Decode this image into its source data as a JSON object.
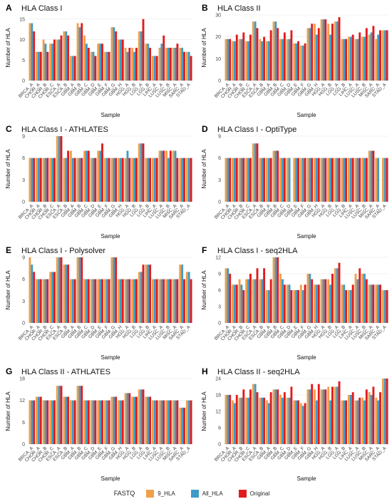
{
  "colors": {
    "9_HLA": "#F0A04B",
    "All_HLA": "#3E9BC8",
    "Original": "#E31A1C"
  },
  "legend": {
    "title": "FASTQ",
    "items": [
      "9_HLA",
      "All_HLA",
      "Original"
    ]
  },
  "chart_data": [
    {
      "panel_label": "A",
      "title": "HLA Class I",
      "type": "bar",
      "xlabel": "Sample",
      "ylabel": "Number of HLA",
      "ylim": [
        0,
        16
      ],
      "yticks": [
        0,
        5,
        10,
        15
      ],
      "grid": true,
      "categories": [
        "BRCA_A",
        "CHOR_A",
        "CHOR_B",
        "CHOR_C",
        "ESCA_A",
        "ESCA_B",
        "GBM_A",
        "GBM_B",
        "GBM_C",
        "GBM_D",
        "GBM_E",
        "GBM_F",
        "GBM_G",
        "GBM_H",
        "HGG_A",
        "HGG_B",
        "LGG_A",
        "LGG_B",
        "LIHC_A",
        "LUSC_A",
        "LUSC_B",
        "MISC_A",
        "SARC_A",
        "STAD_A"
      ],
      "series": [
        {
          "name": "9_HLA",
          "values": [
            14,
            7,
            10,
            9,
            10,
            12,
            6,
            14,
            11,
            7,
            9,
            7,
            13,
            10,
            8,
            8,
            12,
            9,
            6,
            8,
            8,
            8,
            8,
            7
          ]
        },
        {
          "name": "All_HLA",
          "values": [
            14,
            7,
            9,
            9,
            10,
            12,
            6,
            13,
            9,
            7,
            9,
            7,
            13,
            10,
            7,
            7,
            12,
            9,
            6,
            9,
            8,
            8,
            8,
            7
          ]
        },
        {
          "name": "Original",
          "values": [
            12,
            7,
            7,
            10,
            11,
            11,
            6,
            14,
            8,
            6,
            9,
            7,
            12,
            10,
            8,
            8,
            15,
            8,
            6,
            11,
            8,
            9,
            7,
            6
          ]
        }
      ]
    },
    {
      "panel_label": "B",
      "title": "HLA Class II",
      "type": "bar",
      "xlabel": "Sample",
      "ylabel": "Number of HLA",
      "ylim": [
        0,
        30
      ],
      "yticks": [
        0,
        10,
        20,
        30
      ],
      "grid": true,
      "categories": [
        "BRCA_A",
        "CHOR_A",
        "CHOR_B",
        "CHOR_C",
        "ESCA_A",
        "ESCA_B",
        "GBM_A",
        "GBM_B",
        "GBM_C",
        "GBM_D",
        "GBM_E",
        "GBM_F",
        "GBM_G",
        "GBM_H",
        "HGG_A",
        "HGG_B",
        "LGG_A",
        "LGG_B",
        "LIHC_A",
        "LUSC_A",
        "LUSC_B",
        "MISC_A",
        "SARC_A",
        "STAD_A"
      ],
      "series": [
        {
          "name": "9_HLA",
          "values": [
            19,
            18,
            19,
            18,
            27,
            19,
            18,
            27,
            19,
            19,
            17,
            16,
            24,
            26,
            28,
            26,
            27,
            19,
            20,
            19,
            20,
            21,
            19,
            23
          ]
        },
        {
          "name": "All_HLA",
          "values": [
            19,
            18,
            19,
            18,
            27,
            18,
            18,
            27,
            19,
            19,
            17,
            16,
            24,
            21,
            28,
            21,
            27,
            19,
            20,
            19,
            20,
            22,
            21,
            23
          ]
        },
        {
          "name": "Original",
          "values": [
            19,
            21,
            22,
            21,
            24,
            20,
            23,
            24,
            22,
            23,
            18,
            17,
            26,
            24,
            28,
            26,
            29,
            19,
            21,
            22,
            24,
            25,
            23,
            23
          ]
        }
      ]
    },
    {
      "panel_label": "C",
      "title": "HLA Class I - ATHLATES",
      "type": "bar",
      "xlabel": "Sample",
      "ylabel": "Number of HLA",
      "ylim": [
        0,
        9
      ],
      "yticks": [
        0,
        3,
        6,
        9
      ],
      "grid": true,
      "categories": [
        "BRCA_A",
        "CHOR_A",
        "CHOR_B",
        "CHOR_C",
        "ESCA_A",
        "ESCA_B",
        "GBM_A",
        "GBM_B",
        "GBM_C",
        "GBM_D",
        "GBM_E",
        "GBM_F",
        "GBM_G",
        "GBM_H",
        "HGG_A",
        "HGG_B",
        "LGG_A",
        "LGG_B",
        "LIHC_A",
        "LUSC_A",
        "LUSC_B",
        "MISC_A",
        "SARC_A",
        "STAD_A"
      ],
      "series": [
        {
          "name": "9_HLA",
          "values": [
            6,
            6,
            6,
            6,
            9,
            6,
            7,
            6,
            7,
            6,
            7,
            6,
            6,
            6,
            6,
            6,
            8,
            6,
            6,
            7,
            7,
            7,
            6,
            6
          ]
        },
        {
          "name": "All_HLA",
          "values": [
            6,
            6,
            6,
            6,
            9,
            6,
            6,
            6,
            7,
            6,
            7,
            6,
            6,
            6,
            7,
            6,
            8,
            6,
            6,
            7,
            6,
            7,
            6,
            6
          ]
        },
        {
          "name": "Original",
          "values": [
            6,
            6,
            6,
            6,
            9,
            7,
            6,
            6,
            7,
            6,
            8,
            6,
            6,
            6,
            6,
            6,
            8,
            6,
            6,
            7,
            7,
            6,
            6,
            6
          ]
        }
      ]
    },
    {
      "panel_label": "D",
      "title": "HLA Class I - OptiType",
      "type": "bar",
      "xlabel": "Sample",
      "ylabel": "Number of HLA",
      "ylim": [
        0,
        9
      ],
      "yticks": [
        0,
        3,
        6,
        9
      ],
      "grid": true,
      "categories": [
        "BRCA_A",
        "CHOR_A",
        "CHOR_B",
        "CHOR_C",
        "ESCA_A",
        "ESCA_B",
        "GBM_A",
        "GBM_B",
        "GBM_C",
        "GBM_D",
        "GBM_E",
        "GBM_F",
        "GBM_G",
        "GBM_H",
        "HGG_A",
        "HGG_B",
        "LGG_A",
        "LGG_B",
        "LIHC_A",
        "LUSC_A",
        "LUSC_B",
        "MISC_A",
        "SARC_A",
        "STAD_A"
      ],
      "series": [
        {
          "name": "9_HLA",
          "values": [
            6,
            6,
            6,
            6,
            8,
            6,
            6,
            7,
            6,
            6,
            6,
            6,
            6,
            6,
            6,
            6,
            6,
            6,
            6,
            6,
            6,
            7,
            6,
            6
          ]
        },
        {
          "name": "All_HLA",
          "values": [
            6,
            6,
            6,
            6,
            8,
            6,
            6,
            7,
            6,
            6,
            6,
            6,
            6,
            6,
            6,
            6,
            6,
            6,
            6,
            6,
            6,
            7,
            6,
            6
          ]
        },
        {
          "name": "Original",
          "values": [
            6,
            6,
            6,
            6,
            8,
            6,
            6,
            7,
            6,
            0,
            6,
            6,
            6,
            6,
            6,
            6,
            6,
            6,
            6,
            6,
            6,
            7,
            0,
            6
          ]
        }
      ]
    },
    {
      "panel_label": "E",
      "title": "HLA Class I - Polysolver",
      "type": "bar",
      "xlabel": "Sample",
      "ylabel": "Number of HLA",
      "ylim": [
        0,
        9
      ],
      "yticks": [
        0,
        3,
        6,
        9
      ],
      "grid": true,
      "categories": [
        "BRCA_A",
        "CHOR_A",
        "CHOR_B",
        "CHOR_C",
        "ESCA_A",
        "ESCA_B",
        "GBM_A",
        "GBM_B",
        "GBM_C",
        "GBM_D",
        "GBM_E",
        "GBM_F",
        "GBM_G",
        "GBM_H",
        "HGG_A",
        "HGG_B",
        "LGG_A",
        "LGG_B",
        "LIHC_A",
        "LUSC_A",
        "LUSC_B",
        "MISC_A",
        "SARC_A",
        "STAD_A"
      ],
      "series": [
        {
          "name": "9_HLA",
          "values": [
            9,
            6,
            6,
            7,
            9,
            8,
            6,
            9,
            6,
            6,
            6,
            6,
            9,
            6,
            6,
            6,
            7,
            8,
            6,
            6,
            6,
            6,
            8,
            7
          ]
        },
        {
          "name": "All_HLA",
          "values": [
            8,
            6,
            6,
            7,
            9,
            8,
            6,
            9,
            6,
            6,
            6,
            6,
            9,
            6,
            6,
            6,
            7,
            8,
            6,
            6,
            6,
            6,
            8,
            7
          ]
        },
        {
          "name": "Original",
          "values": [
            7,
            6,
            6,
            7,
            9,
            8,
            6,
            9,
            6,
            6,
            6,
            6,
            9,
            6,
            6,
            6,
            8,
            8,
            6,
            6,
            6,
            6,
            6,
            6
          ]
        }
      ]
    },
    {
      "panel_label": "F",
      "title": "HLA Class I - seq2HLA",
      "type": "bar",
      "xlabel": "Sample",
      "ylabel": "Number of HLA",
      "ylim": [
        0,
        12
      ],
      "yticks": [
        0,
        3,
        6,
        9,
        12
      ],
      "grid": true,
      "categories": [
        "BRCA_A",
        "CHOR_A",
        "CHOR_B",
        "CHOR_C",
        "ESCA_A",
        "ESCA_B",
        "GBM_A",
        "GBM_B",
        "GBM_C",
        "GBM_D",
        "GBM_E",
        "GBM_F",
        "GBM_G",
        "GBM_H",
        "HGG_A",
        "HGG_B",
        "LGG_A",
        "LGG_B",
        "LIHC_A",
        "LUSC_A",
        "LUSC_B",
        "MISC_A",
        "SARC_A",
        "STAD_A"
      ],
      "series": [
        {
          "name": "9_HLA",
          "values": [
            10,
            7,
            8,
            8,
            8,
            8,
            6,
            12,
            9,
            7,
            6,
            7,
            9,
            7,
            8,
            8,
            10,
            7,
            6,
            9,
            9,
            7,
            7,
            6
          ]
        },
        {
          "name": "All_HLA",
          "values": [
            10,
            7,
            7,
            8,
            8,
            8,
            6,
            12,
            8,
            7,
            6,
            6,
            9,
            7,
            8,
            7,
            10,
            7,
            6,
            8,
            9,
            7,
            7,
            6
          ]
        },
        {
          "name": "Original",
          "values": [
            9,
            7,
            6,
            9,
            10,
            10,
            8,
            12,
            7,
            6,
            6,
            7,
            8,
            7,
            8,
            9,
            11,
            6,
            7,
            10,
            8,
            7,
            7,
            6
          ]
        }
      ]
    },
    {
      "panel_label": "G",
      "title": "HLA Class II - ATHLATES",
      "type": "bar",
      "xlabel": "Sample",
      "ylabel": "Number of HLA",
      "ylim": [
        0,
        18
      ],
      "yticks": [
        0,
        6,
        12,
        18
      ],
      "grid": true,
      "categories": [
        "BRCA_A",
        "CHOR_A",
        "CHOR_B",
        "CHOR_C",
        "ESCA_A",
        "ESCA_B",
        "GBM_A",
        "GBM_B",
        "GBM_C",
        "GBM_D",
        "GBM_E",
        "GBM_F",
        "GBM_G",
        "GBM_H",
        "HGG_A",
        "HGG_B",
        "LGG_A",
        "LGG_B",
        "LIHC_A",
        "LUSC_A",
        "LUSC_B",
        "MISC_A",
        "SARC_A",
        "STAD_A"
      ],
      "series": [
        {
          "name": "9_HLA",
          "values": [
            12,
            13,
            12,
            12,
            16,
            13,
            12,
            16,
            12,
            12,
            12,
            12,
            13,
            12,
            14,
            13,
            15,
            13,
            12,
            12,
            12,
            12,
            10,
            12
          ]
        },
        {
          "name": "All_HLA",
          "values": [
            12,
            13,
            12,
            12,
            16,
            13,
            12,
            16,
            12,
            12,
            12,
            12,
            13,
            12,
            14,
            13,
            15,
            13,
            12,
            12,
            12,
            12,
            10,
            12
          ]
        },
        {
          "name": "Original",
          "values": [
            12,
            13,
            12,
            12,
            16,
            13,
            12,
            16,
            12,
            12,
            12,
            12,
            13,
            12,
            14,
            13,
            15,
            13,
            12,
            12,
            12,
            12,
            10,
            12
          ]
        }
      ]
    },
    {
      "panel_label": "H",
      "title": "HLA Class II - seq2HLA",
      "type": "bar",
      "xlabel": "Sample",
      "ylabel": "Number of HLA",
      "ylim": [
        0,
        24
      ],
      "yticks": [
        0,
        6,
        12,
        18,
        24
      ],
      "grid": true,
      "categories": [
        "BRCA_A",
        "CHOR_A",
        "CHOR_B",
        "CHOR_C",
        "ESCA_A",
        "ESCA_B",
        "GBM_A",
        "GBM_B",
        "GBM_C",
        "GBM_D",
        "GBM_E",
        "GBM_F",
        "GBM_G",
        "GBM_H",
        "HGG_A",
        "HGG_B",
        "LGG_A",
        "LGG_B",
        "LIHC_A",
        "LUSC_A",
        "LUSC_B",
        "MISC_A",
        "SARC_A",
        "STAD_A"
      ],
      "series": [
        {
          "name": "9_HLA",
          "values": [
            18,
            16,
            17,
            17,
            22,
            17,
            16,
            20,
            18,
            17,
            16,
            15,
            20,
            20,
            20,
            21,
            21,
            16,
            18,
            16,
            17,
            19,
            17,
            24
          ]
        },
        {
          "name": "All_HLA",
          "values": [
            18,
            15,
            17,
            17,
            22,
            17,
            15,
            20,
            17,
            17,
            16,
            14,
            20,
            16,
            20,
            16,
            21,
            16,
            18,
            16,
            16,
            18,
            16,
            24
          ]
        },
        {
          "name": "Original",
          "values": [
            18,
            18,
            20,
            20,
            19,
            17,
            19,
            20,
            19,
            21,
            16,
            15,
            22,
            22,
            20,
            21,
            23,
            16,
            19,
            17,
            20,
            21,
            19,
            24
          ]
        }
      ]
    }
  ]
}
